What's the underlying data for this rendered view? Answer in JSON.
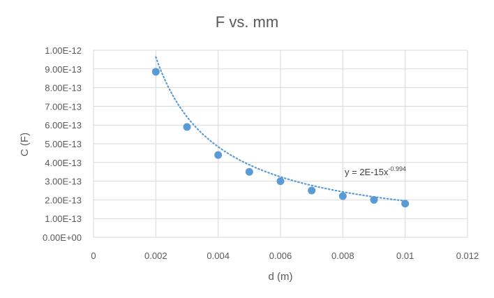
{
  "chart_data": {
    "type": "scatter",
    "title": "F vs. mm",
    "xlabel": "d (m)",
    "ylabel": "C (F)",
    "xlim": [
      0,
      0.012
    ],
    "ylim": [
      0,
      1e-12
    ],
    "x_ticks": [
      "0",
      "0.002",
      "0.004",
      "0.006",
      "0.008",
      "0.01",
      "0.012"
    ],
    "y_ticks": [
      "0.00E+00",
      "1.00E-13",
      "2.00E-13",
      "3.00E-13",
      "4.00E-13",
      "5.00E-13",
      "6.00E-13",
      "7.00E-13",
      "8.00E-13",
      "9.00E-13",
      "1.00E-12"
    ],
    "grid": true,
    "series": [
      {
        "x": [
          0.002,
          0.003,
          0.004,
          0.005,
          0.006,
          0.007,
          0.008,
          0.009,
          0.01
        ],
        "y": [
          8.85e-13,
          5.9e-13,
          4.4e-13,
          3.5e-13,
          3e-13,
          2.5e-13,
          2.2e-13,
          2e-13,
          1.8e-13
        ],
        "color": "#5B9BD5"
      }
    ],
    "trendline": {
      "type": "power",
      "coefficient": 2e-15,
      "exponent": -0.994,
      "style": "dotted",
      "color": "#5B9BD5",
      "equation_base": "y = 2E-15x",
      "equation_exp": "-0.994"
    }
  }
}
